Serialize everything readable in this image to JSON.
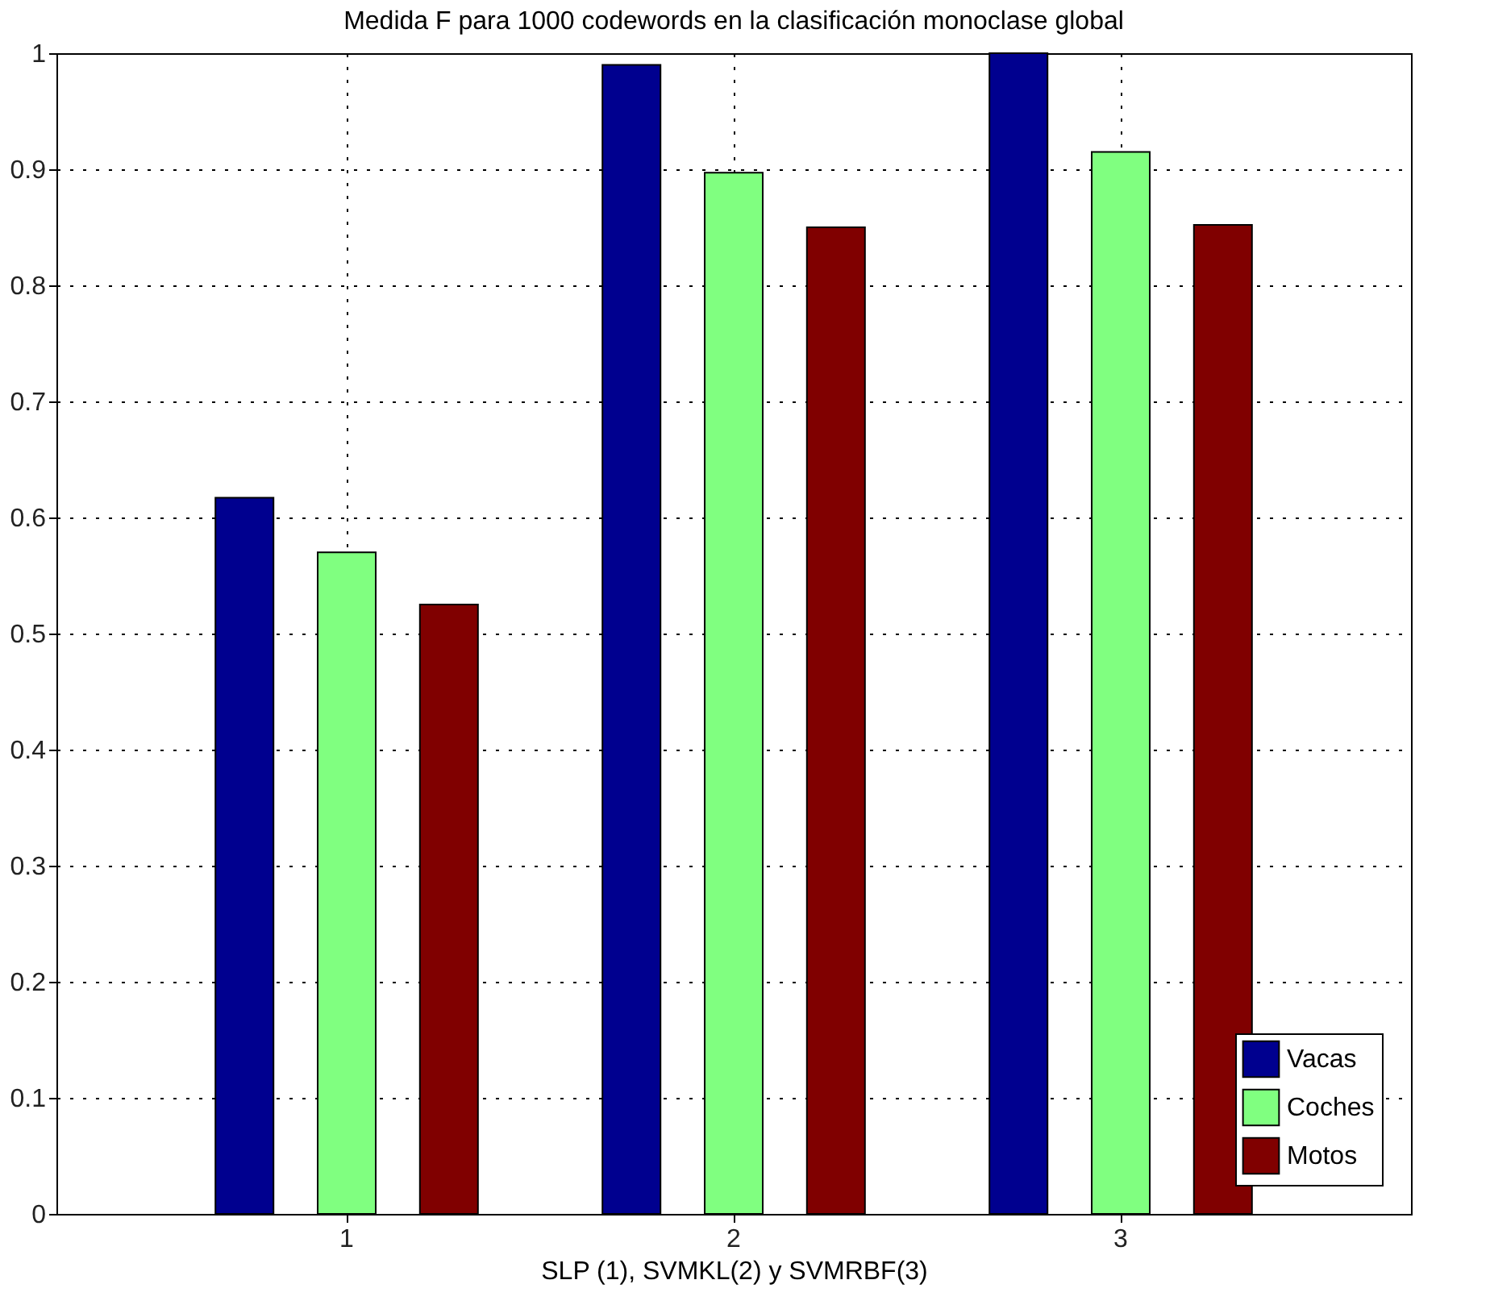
{
  "chart_data": {
    "type": "bar",
    "title": "Medida F para 1000 codewords en la clasificación monoclase global",
    "xlabel": "SLP (1), SVMKL(2) y SVMRBF(3)",
    "categories": [
      "1",
      "2",
      "3"
    ],
    "series": [
      {
        "name": "Vacas",
        "color": "#00008f",
        "values": [
          0.617,
          0.99,
          1.0
        ]
      },
      {
        "name": "Coches",
        "color": "#80ff80",
        "values": [
          0.57,
          0.897,
          0.915
        ]
      },
      {
        "name": "Motos",
        "color": "#800000",
        "values": [
          0.525,
          0.85,
          0.852
        ]
      }
    ],
    "ylim": [
      0,
      1
    ],
    "yticks": [
      0,
      0.1,
      0.2,
      0.3,
      0.4,
      0.5,
      0.6,
      0.7,
      0.8,
      0.9,
      1
    ],
    "grid": true,
    "legend": "bottom right"
  }
}
